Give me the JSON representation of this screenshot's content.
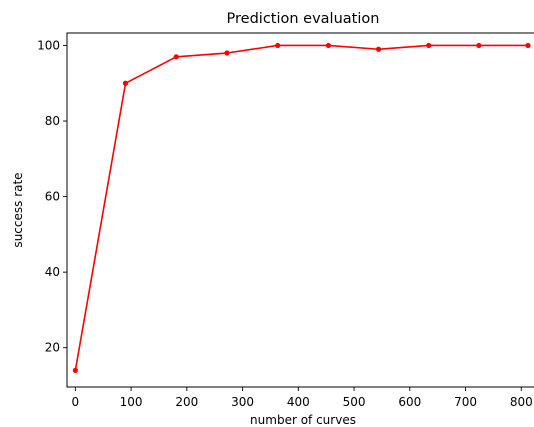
{
  "chart_data": {
    "type": "line",
    "title": "Prediction evaluation",
    "xlabel": "number of curves",
    "ylabel": "success rate",
    "xlim": [
      -15,
      830
    ],
    "ylim": [
      9.6,
      103.3
    ],
    "x_ticks": [
      0,
      100,
      200,
      300,
      400,
      500,
      600,
      700,
      800
    ],
    "y_ticks": [
      20,
      40,
      60,
      80,
      100
    ],
    "grid": false,
    "series": [
      {
        "color": "#ff0000",
        "marker": "circle",
        "x": [
          0,
          90,
          181,
          272,
          363,
          454,
          544,
          634,
          724,
          812
        ],
        "y": [
          14,
          90,
          97,
          98,
          100,
          100,
          99,
          100,
          100,
          100
        ]
      }
    ]
  }
}
